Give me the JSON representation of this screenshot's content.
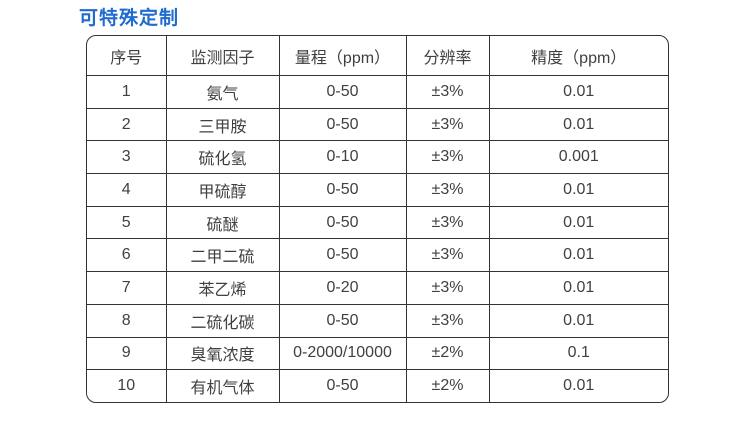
{
  "page_title": "可特殊定制",
  "accent_color": "#1f6bd0",
  "text_color": "#404040",
  "border_color": "#333333",
  "table": {
    "columns": [
      "序号",
      "监测因子",
      "量程（ppm）",
      "分辨率",
      "精度（ppm）"
    ],
    "rows": [
      [
        "1",
        "氨气",
        "0-50",
        "±3%",
        "0.01"
      ],
      [
        "2",
        "三甲胺",
        "0-50",
        "±3%",
        "0.01"
      ],
      [
        "3",
        "硫化氢",
        "0-10",
        "±3%",
        "0.001"
      ],
      [
        "4",
        "甲硫醇",
        "0-50",
        "±3%",
        "0.01"
      ],
      [
        "5",
        "硫醚",
        "0-50",
        "±3%",
        "0.01"
      ],
      [
        "6",
        "二甲二硫",
        "0-50",
        "±3%",
        "0.01"
      ],
      [
        "7",
        "苯乙烯",
        "0-20",
        "±3%",
        "0.01"
      ],
      [
        "8",
        "二硫化碳",
        "0-50",
        "±3%",
        "0.01"
      ],
      [
        "9",
        "臭氧浓度",
        "0-2000/10000",
        "±2%",
        "0.1"
      ],
      [
        "10",
        "有机气体",
        "0-50",
        "±2%",
        "0.01"
      ]
    ]
  }
}
